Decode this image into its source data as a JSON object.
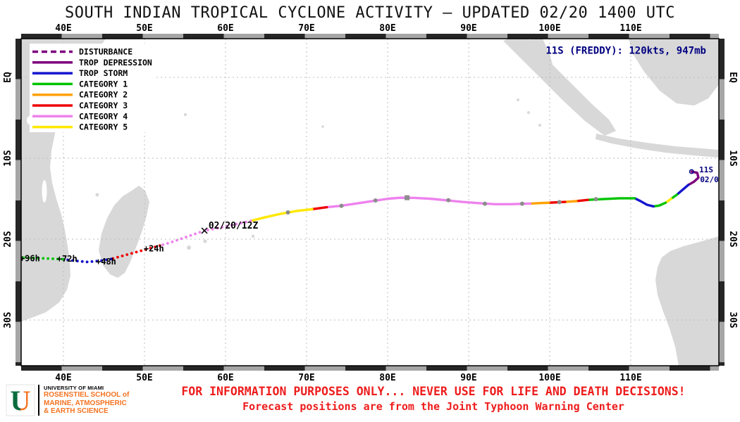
{
  "title": "SOUTH INDIAN TROPICAL CYCLONE ACTIVITY — UPDATED 02/20 1400 UTC",
  "map": {
    "lon_ticks": [
      {
        "label": "40E",
        "lon": 40
      },
      {
        "label": "50E",
        "lon": 50
      },
      {
        "label": "60E",
        "lon": 60
      },
      {
        "label": "70E",
        "lon": 70
      },
      {
        "label": "80E",
        "lon": 80
      },
      {
        "label": "90E",
        "lon": 90
      },
      {
        "label": "100E",
        "lon": 100
      },
      {
        "label": "110E",
        "lon": 110
      }
    ],
    "lat_ticks": [
      {
        "label": "EQ",
        "s": 0
      },
      {
        "label": "10S",
        "s": 10
      },
      {
        "label": "20S",
        "s": 20
      },
      {
        "label": "30S",
        "s": 30
      }
    ],
    "legend": {
      "items": [
        {
          "label": "DISTURBANCE",
          "color": "#7d007d",
          "line": "dashed"
        },
        {
          "label": "TROP DEPRESSION",
          "color": "#7d007d",
          "line": "solid"
        },
        {
          "label": "TROP STORM",
          "color": "#1515cf",
          "line": "solid"
        },
        {
          "label": "CATEGORY 1",
          "color": "#00c400",
          "line": "solid"
        },
        {
          "label": "CATEGORY 2",
          "color": "#ffa200",
          "line": "solid"
        },
        {
          "label": "CATEGORY 3",
          "color": "#f00000",
          "line": "solid"
        },
        {
          "label": "CATEGORY 4",
          "color": "#ee82ee",
          "line": "solid"
        },
        {
          "label": "CATEGORY 5",
          "color": "#ffe800",
          "line": "solid"
        }
      ]
    }
  },
  "chart_data": {
    "type": "cyclone-track",
    "storm": {
      "id": "11S",
      "name": "FREDDY",
      "intensity_kts": 120,
      "pressure_mb": 947
    },
    "updated": "02/20 1400 UTC",
    "segments": [
      {
        "status": "trop-depression",
        "color": "#7d007d",
        "line": "solid",
        "points": [
          [
            117.5,
            11.65
          ],
          [
            118.2,
            11.8
          ],
          [
            118.35,
            12.4
          ],
          [
            117.8,
            12.9
          ],
          [
            117.1,
            13.3
          ]
        ]
      },
      {
        "status": "trop-storm",
        "color": "#1515cf",
        "line": "solid",
        "points": [
          [
            117.1,
            13.3
          ],
          [
            116.4,
            13.9
          ],
          [
            115.7,
            14.5
          ]
        ]
      },
      {
        "status": "category-1",
        "color": "#00c400",
        "line": "solid",
        "points": [
          [
            115.7,
            14.5
          ],
          [
            115.0,
            15.0
          ]
        ]
      },
      {
        "status": "category-5",
        "color": "#ffe800",
        "line": "solid",
        "points": [
          [
            115.0,
            15.0
          ],
          [
            114.3,
            15.5
          ]
        ]
      },
      {
        "status": "category-1",
        "color": "#00c400",
        "line": "solid",
        "points": [
          [
            114.3,
            15.5
          ],
          [
            113.5,
            15.85
          ],
          [
            112.8,
            15.95
          ]
        ]
      },
      {
        "status": "trop-storm",
        "color": "#1515cf",
        "line": "solid",
        "points": [
          [
            112.8,
            15.95
          ],
          [
            112.0,
            15.75
          ],
          [
            111.2,
            15.3
          ],
          [
            110.5,
            14.95
          ]
        ]
      },
      {
        "status": "category-1",
        "color": "#00c400",
        "line": "solid",
        "points": [
          [
            110.5,
            14.95
          ],
          [
            108.6,
            14.95
          ],
          [
            106.6,
            15.05
          ],
          [
            104.7,
            15.15
          ]
        ]
      },
      {
        "status": "category-3",
        "color": "#f00000",
        "line": "solid",
        "points": [
          [
            104.7,
            15.15
          ],
          [
            103.3,
            15.3
          ]
        ]
      },
      {
        "status": "category-2",
        "color": "#ffa200",
        "line": "solid",
        "points": [
          [
            103.3,
            15.3
          ],
          [
            101.9,
            15.4
          ]
        ]
      },
      {
        "status": "category-3",
        "color": "#f00000",
        "line": "solid",
        "points": [
          [
            101.9,
            15.4
          ],
          [
            99.9,
            15.5
          ]
        ]
      },
      {
        "status": "category-2",
        "color": "#ffa200",
        "line": "solid",
        "points": [
          [
            99.9,
            15.5
          ],
          [
            97.6,
            15.6
          ]
        ]
      },
      {
        "status": "category-4",
        "color": "#ee82ee",
        "line": "solid",
        "points": [
          [
            97.6,
            15.6
          ],
          [
            95.2,
            15.68
          ],
          [
            93.2,
            15.68
          ],
          [
            91.2,
            15.55
          ],
          [
            89.2,
            15.4
          ],
          [
            87.3,
            15.2
          ],
          [
            85.2,
            15.0
          ],
          [
            83.2,
            14.9
          ],
          [
            81.6,
            14.88
          ],
          [
            80.1,
            15.0
          ],
          [
            78.1,
            15.3
          ],
          [
            76.1,
            15.6
          ],
          [
            74.1,
            15.9
          ],
          [
            72.5,
            16.05
          ]
        ]
      },
      {
        "status": "category-3",
        "color": "#f00000",
        "line": "solid",
        "points": [
          [
            72.5,
            16.05
          ],
          [
            70.7,
            16.3
          ]
        ]
      },
      {
        "status": "category-5",
        "color": "#ffe800",
        "line": "solid",
        "points": [
          [
            70.7,
            16.3
          ],
          [
            68.9,
            16.5
          ],
          [
            66.9,
            16.85
          ],
          [
            64.9,
            17.3
          ],
          [
            63.1,
            17.75
          ]
        ]
      },
      {
        "status": "category-4",
        "color": "#ee82ee",
        "line": "dotted",
        "points": [
          [
            63.1,
            17.75
          ],
          [
            61.3,
            18.15
          ],
          [
            59.5,
            18.55
          ],
          [
            57.4,
            18.95
          ]
        ]
      },
      {
        "status": "forecast-category-4",
        "color": "#ee82ee",
        "line": "dotted",
        "points": [
          [
            57.4,
            18.95
          ],
          [
            55.4,
            19.65
          ],
          [
            53.4,
            20.35
          ],
          [
            51.9,
            20.8
          ]
        ]
      },
      {
        "status": "forecast-category-3",
        "color": "#f00000",
        "line": "dotted",
        "points": [
          [
            51.9,
            20.8
          ],
          [
            49.9,
            21.35
          ],
          [
            47.9,
            21.9
          ],
          [
            45.9,
            22.45
          ]
        ]
      },
      {
        "status": "forecast-trop-storm",
        "color": "#1515cf",
        "line": "dotted",
        "points": [
          [
            45.9,
            22.45
          ],
          [
            44.4,
            22.7
          ],
          [
            42.9,
            22.82
          ],
          [
            41.4,
            22.68
          ],
          [
            39.9,
            22.48
          ]
        ]
      },
      {
        "status": "forecast-category-1",
        "color": "#00c400",
        "line": "dotted",
        "points": [
          [
            39.9,
            22.48
          ],
          [
            38.1,
            22.4
          ],
          [
            36.3,
            22.33
          ],
          [
            34.8,
            22.3
          ]
        ]
      }
    ],
    "position_markers": [
      [
        105.7,
        15.05
      ],
      [
        101.2,
        15.42
      ],
      [
        96.6,
        15.62
      ],
      [
        92.0,
        15.62
      ],
      [
        87.5,
        15.18
      ],
      [
        78.5,
        15.22
      ],
      [
        74.3,
        15.88
      ],
      [
        67.7,
        16.7
      ]
    ],
    "square_marker": [
      82.4,
      14.88
    ],
    "origin_marker": [
      117.5,
      11.65
    ],
    "current_position": {
      "lon": 57.4,
      "lat_s": 18.95,
      "label": "02/20/12Z"
    },
    "annotations": [
      {
        "text": "11S (FREDDY): 120kts, 947mb",
        "lon": 119.3,
        "lat_s": -2.9,
        "anchor": "end",
        "color": "#000080",
        "size": 14,
        "bold": true,
        "name": "storm-info-label"
      },
      {
        "text": "02/20/12Z",
        "lon": 57.9,
        "lat_s": 18.7,
        "anchor": "start",
        "color": "#000000",
        "size": 13,
        "bold": true,
        "name": "current-time-label"
      },
      {
        "text": "+24h",
        "lon": 49.9,
        "lat_s": 21.5,
        "anchor": "start",
        "color": "#000000",
        "size": 12,
        "bold": true,
        "name": "forecast-24h-label"
      },
      {
        "text": "+48h",
        "lon": 44.0,
        "lat_s": 23.15,
        "anchor": "start",
        "color": "#000000",
        "size": 12,
        "bold": true,
        "name": "forecast-48h-label"
      },
      {
        "text": "+72h",
        "lon": 39.2,
        "lat_s": 22.8,
        "anchor": "start",
        "color": "#000000",
        "size": 12,
        "bold": true,
        "name": "forecast-72h-label"
      },
      {
        "text": "+96h",
        "lon": 34.6,
        "lat_s": 22.75,
        "anchor": "start",
        "color": "#000000",
        "size": 12,
        "bold": true,
        "name": "forecast-96h-label"
      },
      {
        "text": "11S",
        "lon": 118.45,
        "lat_s": 11.75,
        "anchor": "start",
        "color": "#000080",
        "size": 11,
        "bold": true,
        "name": "origin-id-label"
      },
      {
        "text": "02/0",
        "lon": 118.55,
        "lat_s": 12.95,
        "anchor": "start",
        "color": "#000080",
        "size": 11,
        "bold": true,
        "name": "origin-date-label"
      }
    ]
  },
  "footer": {
    "logo_letter": "U",
    "university": "UNIVERSITY OF MIAMI",
    "school_lines": [
      "ROSENSTIEL SCHOOL of",
      "MARINE, ATMOSPHERIC",
      "& EARTH SCIENCE"
    ],
    "disclaimer1": "FOR INFORMATION PURPOSES ONLY... NEVER USE FOR LIFE AND DEATH DECISIONS!",
    "disclaimer2": "Forecast positions are from the Joint Typhoon Warning Center"
  },
  "colors": {
    "land": "#d8d8d8",
    "grid": "#bdbdbd",
    "frame": "#000000",
    "disclaimer": "#ee1c1c",
    "storm_text": "#000080",
    "um_orange": "#f47321",
    "um_green": "#0a6b3d",
    "band_dark": "#262626",
    "band_light": "#a6a6a6"
  }
}
